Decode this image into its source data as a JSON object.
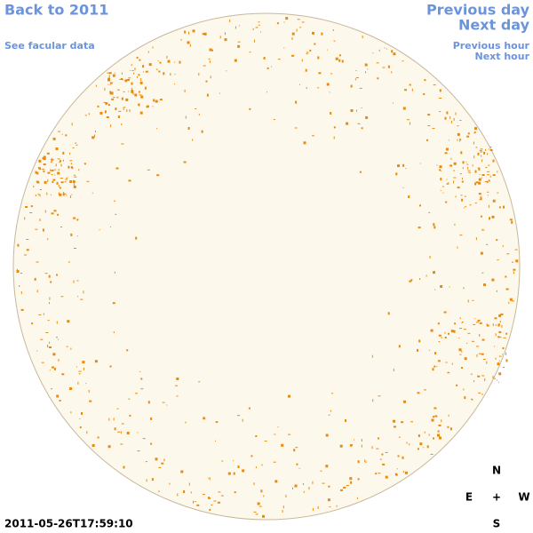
{
  "navigation": {
    "back": "Back to 2011",
    "facular": "See facular data",
    "previous_day": "Previous day",
    "next_day": "Next day",
    "previous_hour": "Previous hour",
    "next_hour": "Next hour"
  },
  "compass": {
    "north": "N",
    "east": "E",
    "center": "+",
    "west": "W",
    "south": "S"
  },
  "timestamp": "2011-05-26T17:59:10"
}
